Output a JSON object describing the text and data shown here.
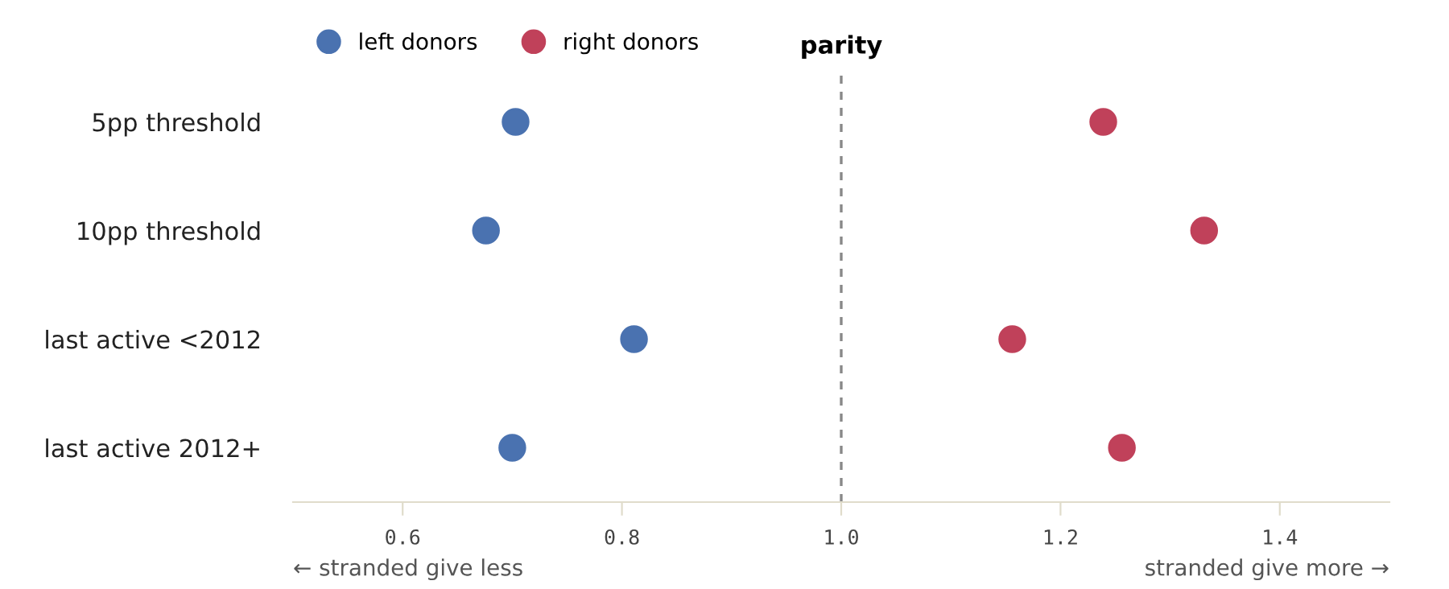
{
  "chart_data": {
    "type": "scatter",
    "categories": [
      "5pp threshold",
      "10pp threshold",
      "last active <2012",
      "last active 2012+"
    ],
    "orientation": "horizontal",
    "series": [
      {
        "name": "left donors",
        "color": "#4a72b0",
        "values": [
          0.703,
          0.676,
          0.811,
          0.7
        ]
      },
      {
        "name": "right donors",
        "color": "#c0415a",
        "values": [
          1.239,
          1.331,
          1.156,
          1.256
        ]
      }
    ],
    "xlim": [
      0.5,
      1.5
    ],
    "xticks": [
      {
        "value": 0.6,
        "label": "0.6"
      },
      {
        "value": 0.8,
        "label": "0.8"
      },
      {
        "value": 1.0,
        "label": "1.0"
      },
      {
        "value": 1.2,
        "label": "1.2"
      },
      {
        "value": 1.4,
        "label": "1.4"
      }
    ],
    "ref_lines": [
      {
        "axis": "x",
        "value": 1.0,
        "label": "parity",
        "color": "#888888",
        "line_style": "dashed"
      }
    ],
    "annotations": [
      "← stranded give less",
      "stranded give more →"
    ],
    "marker": "circle",
    "grid": false,
    "legend": "top left"
  }
}
